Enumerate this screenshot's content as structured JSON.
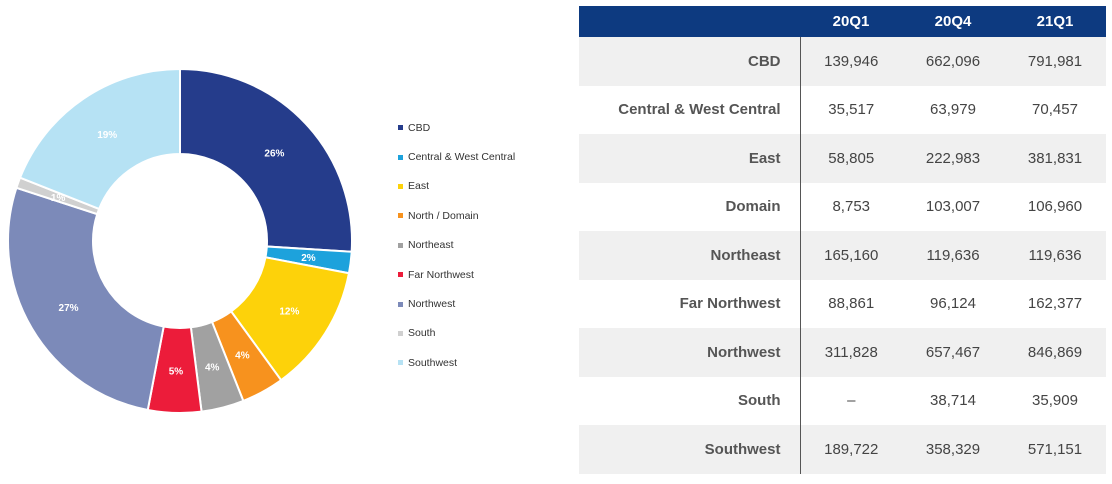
{
  "colors": {
    "CBD": "#253c8b",
    "Central & West Central": "#1da2dc",
    "East": "#fdd20a",
    "North / Domain": "#f7921e",
    "Northeast": "#a1a1a1",
    "Far Northwest": "#ec1c3a",
    "Northwest": "#7c8ab9",
    "South": "#d0d0d0",
    "Southwest": "#b6e2f4",
    "header_bg": "#0d3a80",
    "row_shade": "#f0f0f0"
  },
  "chart_data": [
    {
      "type": "pie",
      "donut": true,
      "labels": [
        "CBD",
        "Central & West Central",
        "East",
        "North / Domain",
        "Northeast",
        "Far Northwest",
        "Northwest",
        "South",
        "Southwest"
      ],
      "values": [
        26,
        2,
        12,
        4,
        4,
        5,
        27,
        1,
        19
      ],
      "value_labels": [
        "26%",
        "2%",
        "12%",
        "4%",
        "4%",
        "5%",
        "27%",
        "1%",
        "19%"
      ],
      "legend_position": "right"
    },
    {
      "type": "table",
      "columns": [
        "",
        "20Q1",
        "20Q4",
        "21Q1"
      ],
      "rows": [
        {
          "label": "CBD",
          "values": [
            "139,946",
            "662,096",
            "791,981"
          ]
        },
        {
          "label": "Central & West Central",
          "values": [
            "35,517",
            "63,979",
            "70,457"
          ]
        },
        {
          "label": "East",
          "values": [
            "58,805",
            "222,983",
            "381,831"
          ]
        },
        {
          "label": "Domain",
          "values": [
            "8,753",
            "103,007",
            "106,960"
          ]
        },
        {
          "label": "Northeast",
          "values": [
            "165,160",
            "119,636",
            "119,636"
          ]
        },
        {
          "label": "Far Northwest",
          "values": [
            "88,861",
            "96,124",
            "162,377"
          ]
        },
        {
          "label": "Northwest",
          "values": [
            "311,828",
            "657,467",
            "846,869"
          ]
        },
        {
          "label": "South",
          "values": [
            "–",
            "38,714",
            "35,909"
          ]
        },
        {
          "label": "Southwest",
          "values": [
            "189,722",
            "358,329",
            "571,151"
          ]
        }
      ]
    }
  ]
}
